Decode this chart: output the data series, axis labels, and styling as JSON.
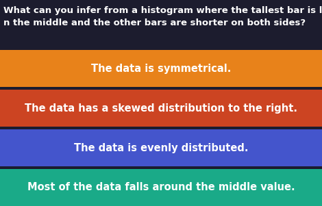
{
  "background_color": "#1c1c2e",
  "question_text": "What can you infer from a histogram where the tallest bar is located\nn the middle and the other bars are shorter on both sides?",
  "question_color": "#ffffff",
  "question_fontsize": 9.5,
  "options": [
    {
      "text": "The data is symmetrical.",
      "bg_color": "#e8821a",
      "text_color": "#ffffff",
      "fontsize": 10.5
    },
    {
      "text": "The data has a skewed distribution to the right.",
      "bg_color": "#cc4422",
      "text_color": "#ffffff",
      "fontsize": 10.5
    },
    {
      "text": "The data is evenly distributed.",
      "bg_color": "#4455cc",
      "text_color": "#ffffff",
      "fontsize": 10.5
    },
    {
      "text": "Most of the data falls around the middle value.",
      "bg_color": "#1aaa88",
      "text_color": "#ffffff",
      "fontsize": 10.5
    }
  ],
  "fig_width": 4.7,
  "fig_height": 3.01,
  "dpi": 100
}
